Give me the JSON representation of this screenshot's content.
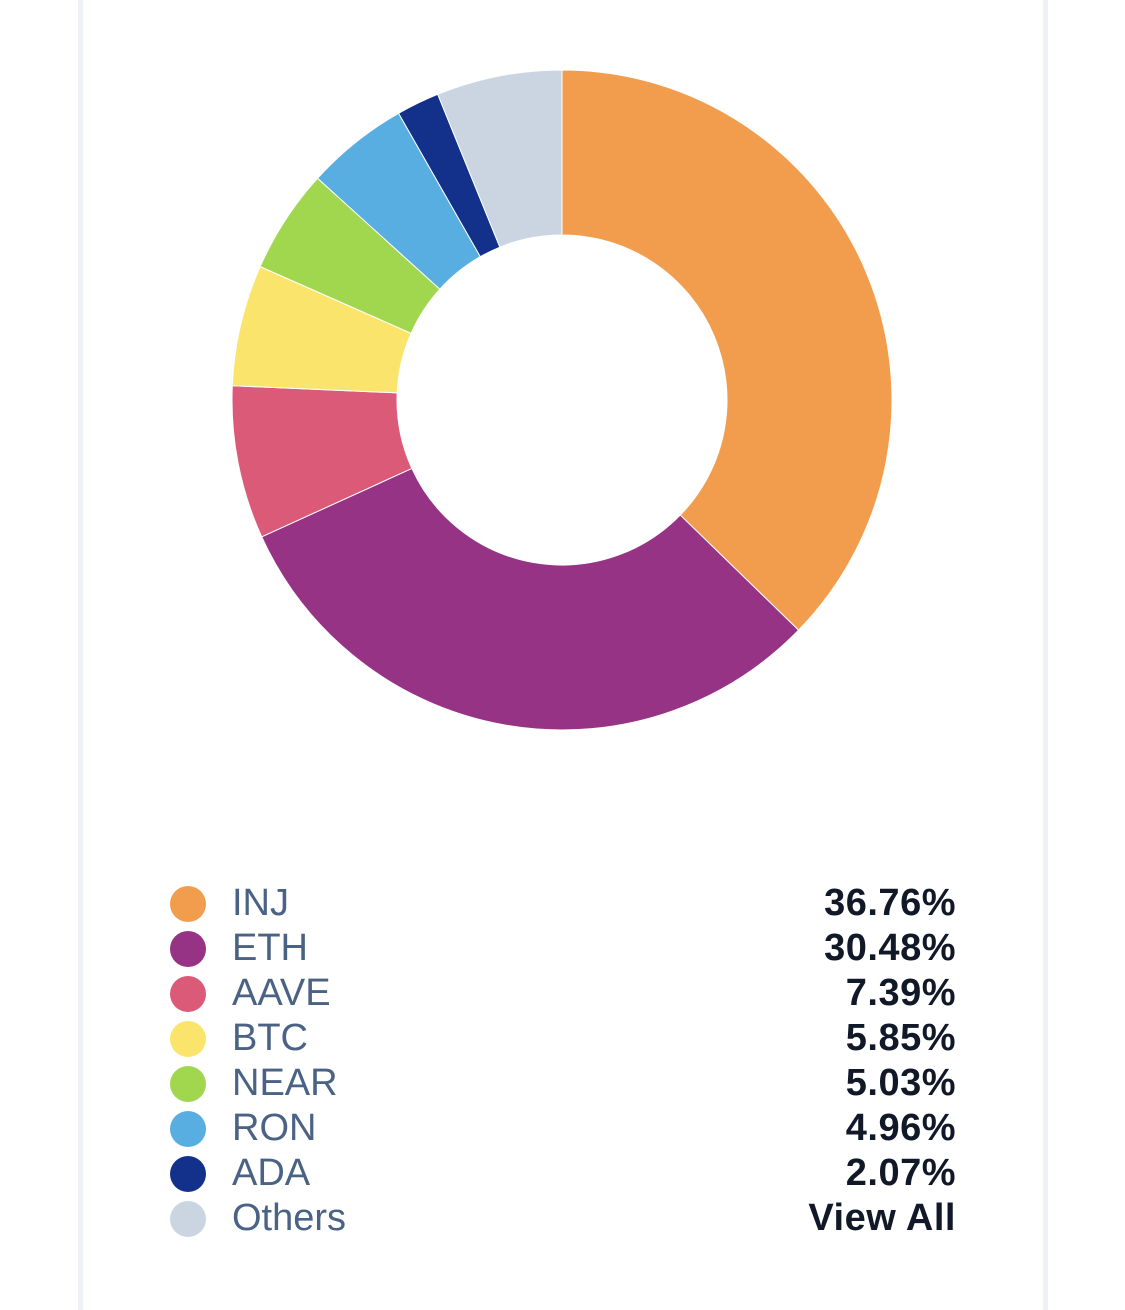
{
  "chart_data": {
    "type": "pie",
    "variant": "donut",
    "start": "top",
    "direction": "clockwise",
    "slices": [
      {
        "label": "INJ",
        "value": 36.76,
        "display": "36.76%",
        "color": "#f29d4d"
      },
      {
        "label": "ETH",
        "value": 30.48,
        "display": "30.48%",
        "color": "#963384"
      },
      {
        "label": "AAVE",
        "value": 7.39,
        "display": "7.39%",
        "color": "#db5a78"
      },
      {
        "label": "BTC",
        "value": 5.85,
        "display": "5.85%",
        "color": "#fbe46c"
      },
      {
        "label": "NEAR",
        "value": 5.03,
        "display": "5.03%",
        "color": "#a0d74e"
      },
      {
        "label": "RON",
        "value": 4.96,
        "display": "4.96%",
        "color": "#58ade1"
      },
      {
        "label": "ADA",
        "value": 2.07,
        "display": "2.07%",
        "color": "#13308b"
      },
      {
        "label": "Others",
        "value": null,
        "display": "View All",
        "color": "#cbd5e1"
      }
    ]
  }
}
